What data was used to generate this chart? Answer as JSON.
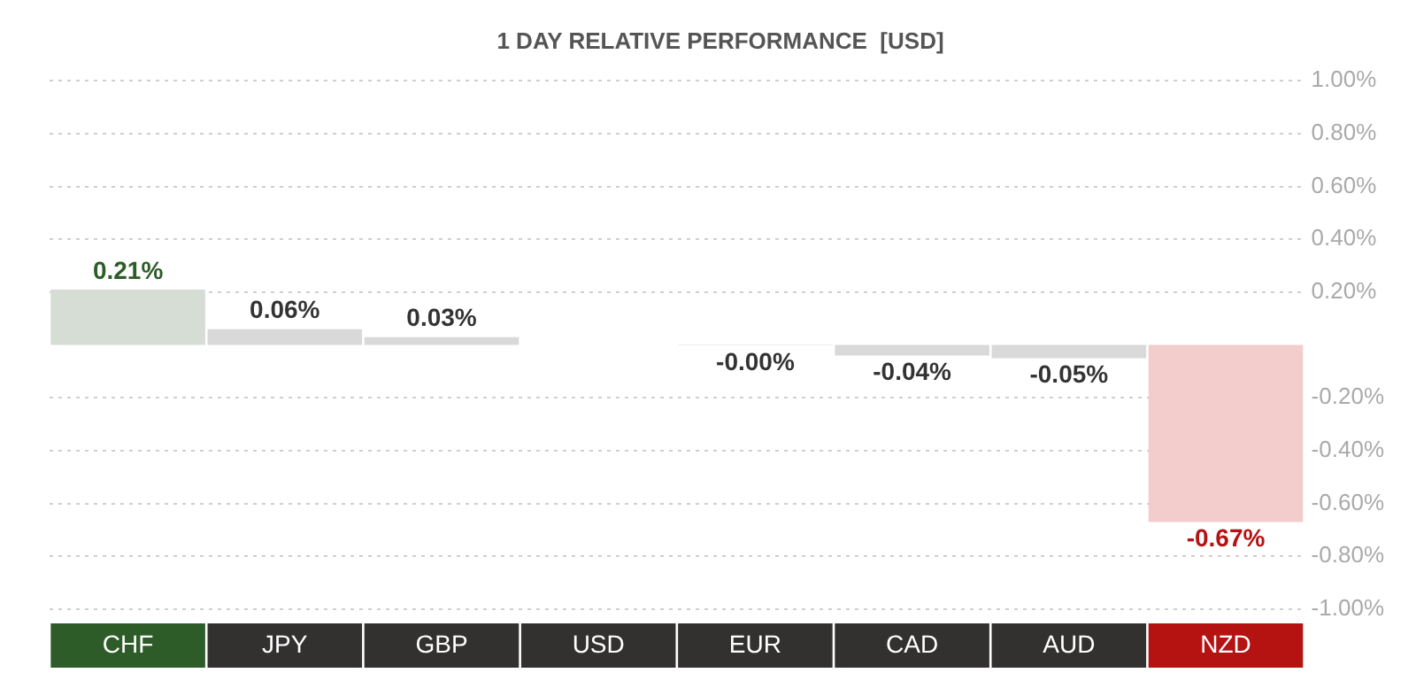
{
  "chart_data": {
    "type": "bar",
    "title": "1 DAY RELATIVE PERFORMANCE  [USD]",
    "categories": [
      "CHF",
      "JPY",
      "GBP",
      "USD",
      "EUR",
      "CAD",
      "AUD",
      "NZD"
    ],
    "values": [
      0.21,
      0.06,
      0.03,
      0,
      -0.001,
      -0.04,
      -0.05,
      -0.67
    ],
    "value_labels": [
      "0.21%",
      "0.06%",
      "0.03%",
      null,
      "-0.00%",
      "-0.04%",
      "-0.05%",
      "-0.67%"
    ],
    "colors": [
      "#d5ddd5",
      "#d9d9d9",
      "#d9d9d9",
      "#d9d9d9",
      "#d9d9d9",
      "#d9d9d9",
      "#d9d9d9",
      "#f3cccc"
    ],
    "ylim": [
      -1,
      1
    ],
    "yticks": [
      {
        "value": 1,
        "label": "1.00%"
      },
      {
        "value": 0.8,
        "label": "0.80%"
      },
      {
        "value": 0.6,
        "label": "0.60%"
      },
      {
        "value": 0.4,
        "label": "0.40%"
      },
      {
        "value": 0.2,
        "label": "0.20%"
      },
      {
        "value": -0.2,
        "label": "-0.20%"
      },
      {
        "value": -0.4,
        "label": "-0.40%"
      },
      {
        "value": -0.6,
        "label": "-0.60%"
      },
      {
        "value": -0.8,
        "label": "-0.80%"
      },
      {
        "value": -1,
        "label": "-1.00%"
      }
    ],
    "grid": true,
    "legend": false
  }
}
